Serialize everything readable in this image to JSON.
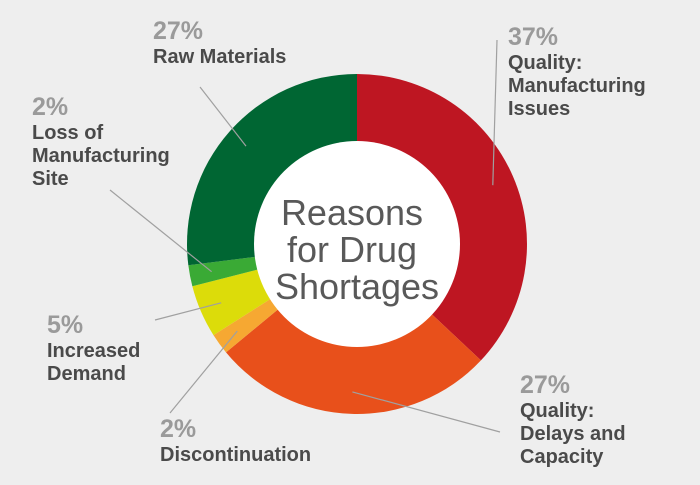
{
  "chart_data": {
    "type": "pie",
    "title": "Reasons for Drug Shortages",
    "title_lines": [
      "Reasons",
      "for Drug",
      "Shortages"
    ],
    "slices": [
      {
        "label": "Quality: Manufacturing Issues",
        "label_lines": [
          "Quality:",
          "Manufacturing",
          "Issues"
        ],
        "value": 37,
        "value_label": "37%",
        "color": "#be1622"
      },
      {
        "label": "Quality: Delays and Capacity",
        "label_lines": [
          "Quality:",
          "Delays and",
          "Capacity"
        ],
        "value": 27,
        "value_label": "27%",
        "color": "#e8501b"
      },
      {
        "label": "Discontinuation",
        "label_lines": [
          "Discontinuation"
        ],
        "value": 2,
        "value_label": "2%",
        "color": "#f6a832"
      },
      {
        "label": "Increased Demand",
        "label_lines": [
          "Increased",
          "Demand"
        ],
        "value": 5,
        "value_label": "5%",
        "color": "#dcdc0a"
      },
      {
        "label": "Loss of Manufacturing Site",
        "label_lines": [
          "Loss of",
          "Manufacturing",
          "Site"
        ],
        "value": 2,
        "value_label": "2%",
        "color": "#3aaa35"
      },
      {
        "label": "Raw Materials",
        "label_lines": [
          "Raw Materials"
        ],
        "value": 27,
        "value_label": "27%",
        "color": "#006633"
      }
    ],
    "background": "#eeeeee",
    "center_fill": "#ffffff",
    "leader_color": "#a0a0a0"
  }
}
